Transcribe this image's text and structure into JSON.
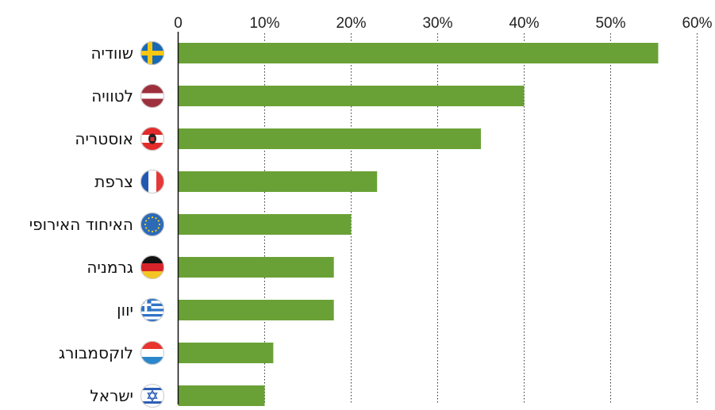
{
  "chart_data": {
    "type": "bar",
    "orientation": "horizontal",
    "categories": [
      "שוודיה",
      "לטוויה",
      "אוסטריה",
      "צרפת",
      "האיחוד האירופי",
      "גרמניה",
      "יוון",
      "לוקסמבורג",
      "ישראל"
    ],
    "flags": [
      "sweden",
      "latvia",
      "austria",
      "france",
      "eu",
      "germany",
      "greece",
      "luxembourg",
      "israel"
    ],
    "values": [
      55.5,
      40,
      35,
      23,
      20,
      18,
      18,
      11,
      10
    ],
    "unit": "%",
    "xlim": [
      0,
      60
    ],
    "xticks": [
      "0",
      "10%",
      "20%",
      "30%",
      "40%",
      "50%",
      "60%"
    ],
    "grid": "vertical dotted",
    "bar_color": "#6aa136",
    "title": "",
    "xlabel": "",
    "ylabel": ""
  }
}
